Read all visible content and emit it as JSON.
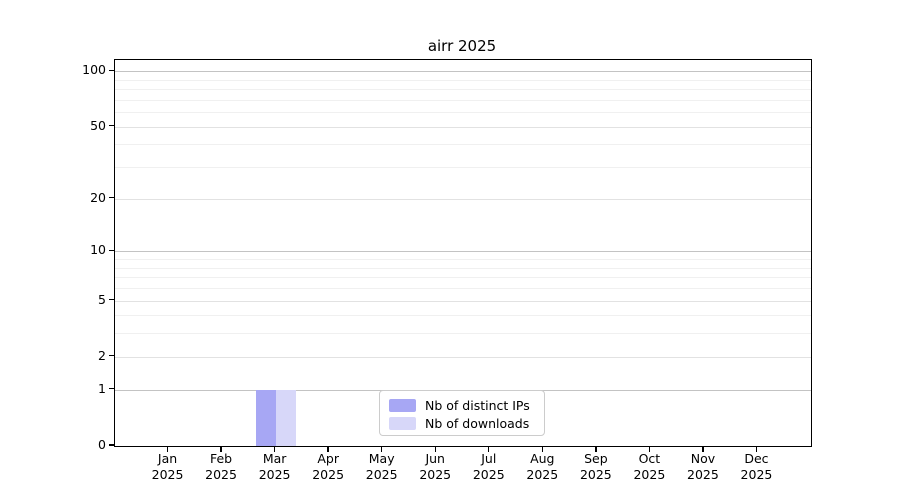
{
  "chart_data": {
    "type": "bar",
    "title": "airr 2025",
    "categories": [
      "Jan",
      "Feb",
      "Mar",
      "Apr",
      "May",
      "Jun",
      "Jul",
      "Aug",
      "Sep",
      "Oct",
      "Nov",
      "Dec"
    ],
    "year_label": "2025",
    "series": [
      {
        "name": "Nb of distinct IPs",
        "color": "#a7a7f4",
        "values": [
          0,
          0,
          1,
          0,
          0,
          0,
          0,
          0,
          0,
          0,
          0,
          0
        ]
      },
      {
        "name": "Nb of downloads",
        "color": "#d7d7f9",
        "values": [
          0,
          0,
          1,
          0,
          0,
          0,
          0,
          0,
          0,
          0,
          0,
          0
        ]
      }
    ],
    "yscale": "log1p",
    "ylim": [
      0,
      115
    ],
    "yticks": [
      0,
      1,
      2,
      5,
      10,
      20,
      50,
      100
    ],
    "major_gridlines": [
      1,
      10,
      100
    ],
    "minor_gridlines": [
      2,
      3,
      4,
      5,
      6,
      7,
      8,
      9,
      20,
      30,
      40,
      50,
      60,
      70,
      80,
      90
    ],
    "grid": true,
    "legend_position": "lower center",
    "colors": {
      "major_grid": "#c3c3c3",
      "labeled_grid": "#e2e2e2",
      "minor_grid": "#f0f0f0",
      "axis": "#000000",
      "background": "#ffffff"
    }
  }
}
